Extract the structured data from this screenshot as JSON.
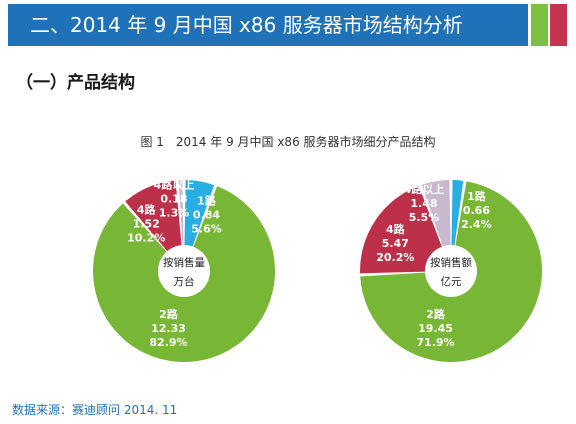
{
  "header": {
    "title": "二、2014 年 9 月中国 x86 服务器市场结构分析",
    "colors": {
      "banner": "#1f72b8",
      "accent_green": "#7cc142",
      "accent_red": "#c7344f"
    }
  },
  "section": {
    "title": "（一）产品结构"
  },
  "figure": {
    "title": "图 1　2014 年 9 月中国 x86 服务器市场细分产品结构"
  },
  "footer": {
    "source": "数据来源：赛迪顾问 2014. 11"
  },
  "chart_data": [
    {
      "type": "pie",
      "subtype": "donut",
      "center_label": [
        "按销售量",
        "万台"
      ],
      "slices": [
        {
          "name": "1路",
          "value": 0.84,
          "percent": 5.6,
          "value_text": "0.84",
          "percent_text": "5.6%",
          "color": "#29aee3"
        },
        {
          "name": "2路",
          "value": 12.33,
          "percent": 82.9,
          "value_text": "12.33",
          "percent_text": "82.9%",
          "color": "#77b735"
        },
        {
          "name": "4路",
          "value": 1.52,
          "percent": 10.2,
          "value_text": "1.52",
          "percent_text": "10.2%",
          "color": "#bd3049"
        },
        {
          "name": "4路以上",
          "value": 0.18,
          "percent": 1.3,
          "value_text": "0.18",
          "percent_text": "1.3%",
          "color": "#c9b9cf"
        }
      ]
    },
    {
      "type": "pie",
      "subtype": "donut",
      "center_label": [
        "按销售额",
        "亿元"
      ],
      "slices": [
        {
          "name": "1路",
          "value": 0.66,
          "percent": 2.4,
          "value_text": "0.66",
          "percent_text": "2.4%",
          "color": "#29aee3"
        },
        {
          "name": "2路",
          "value": 19.45,
          "percent": 71.9,
          "value_text": "19.45",
          "percent_text": "71.9%",
          "color": "#77b735"
        },
        {
          "name": "4路",
          "value": 5.47,
          "percent": 20.2,
          "value_text": "5.47",
          "percent_text": "20.2%",
          "color": "#bd3049"
        },
        {
          "name": "4路以上",
          "value": 1.48,
          "percent": 5.5,
          "value_text": "1.48",
          "percent_text": "5.5%",
          "color": "#c9b9cf"
        }
      ]
    }
  ]
}
